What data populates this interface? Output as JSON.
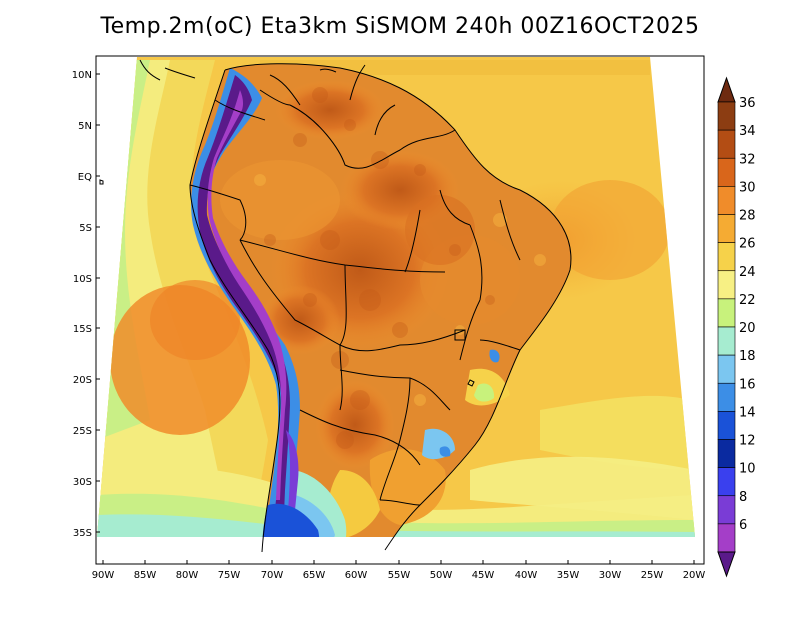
{
  "title": "Temp.2m(oC) Eta3km SiSMOM 240h 00Z16OCT2025",
  "lat_labels": [
    "10N",
    "5N",
    "EQ",
    "5S",
    "10S",
    "15S",
    "20S",
    "25S",
    "30S",
    "35S"
  ],
  "lon_labels": [
    "90W",
    "85W",
    "80W",
    "75W",
    "70W",
    "65W",
    "60W",
    "55W",
    "50W",
    "45W",
    "40W",
    "35W",
    "30W",
    "25W",
    "20W"
  ],
  "colorbar": {
    "labels": [
      "36",
      "34",
      "32",
      "30",
      "28",
      "26",
      "24",
      "22",
      "20",
      "18",
      "16",
      "14",
      "12",
      "10",
      "8",
      "6"
    ],
    "colors": [
      "#6e2a10",
      "#8c3d12",
      "#b34d14",
      "#d9661b",
      "#f08c2a",
      "#f5ab33",
      "#f6d24a",
      "#f7f084",
      "#c8f27c",
      "#a6ecd0",
      "#7bc6f0",
      "#3c8ee6",
      "#1a52d8",
      "#0a2aa0",
      "#3a40ee",
      "#7a3cd6",
      "#a43ec8",
      "#5a1a8a"
    ]
  }
}
